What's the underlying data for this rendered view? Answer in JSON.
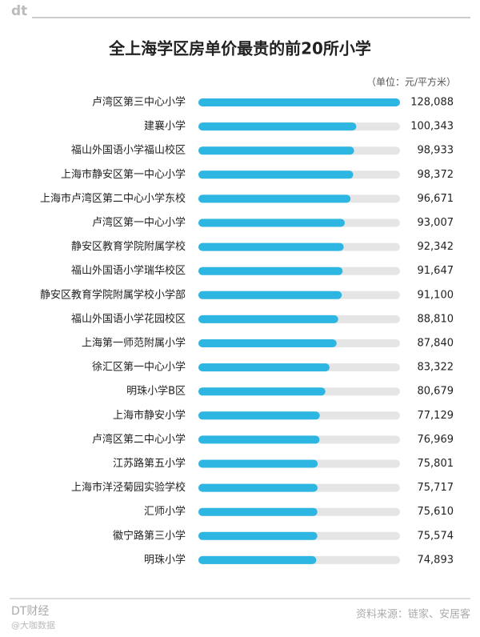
{
  "logo": "dt",
  "chart_data": {
    "type": "bar",
    "orientation": "horizontal",
    "title": "全上海学区房单价最贵的前20所小学",
    "unit": "（单位：元/平方米）",
    "categories": [
      "卢湾区第三中心小学",
      "建襄小学",
      "福山外国语小学福山校区",
      "上海市静安区第一中心小学",
      "上海市卢湾区第二中心小学东校",
      "卢湾区第一中心小学",
      "静安区教育学院附属学校",
      "福山外国语小学瑞华校区",
      "静安区教育学院附属学校小学部",
      "福山外国语小学花园校区",
      "上海第一师范附属小学",
      "徐汇区第一中心小学",
      "明珠小学B区",
      "上海市静安小学",
      "卢湾区第二中心小学",
      "江苏路第五小学",
      "上海市洋泾菊园实验学校",
      "汇师小学",
      "徽宁路第三小学",
      "明珠小学"
    ],
    "values": [
      128088,
      100343,
      98933,
      98372,
      96671,
      93007,
      92342,
      91647,
      91100,
      88810,
      87840,
      83322,
      80679,
      77129,
      76969,
      75801,
      75717,
      75610,
      75574,
      74893
    ],
    "value_labels": [
      "128,088",
      "100,343",
      "98,933",
      "98,372",
      "96,671",
      "93,007",
      "92,342",
      "91,647",
      "91,100",
      "88,810",
      "87,840",
      "83,322",
      "80,679",
      "77,129",
      "76,969",
      "75,801",
      "75,717",
      "75,610",
      "75,574",
      "74,893"
    ],
    "color": "#2db6e1",
    "track_color": "#e5e5e5"
  },
  "footer": {
    "brand": "DT财经",
    "watermark": "@大咖数据",
    "source": "资料来源：链家、安居客"
  }
}
